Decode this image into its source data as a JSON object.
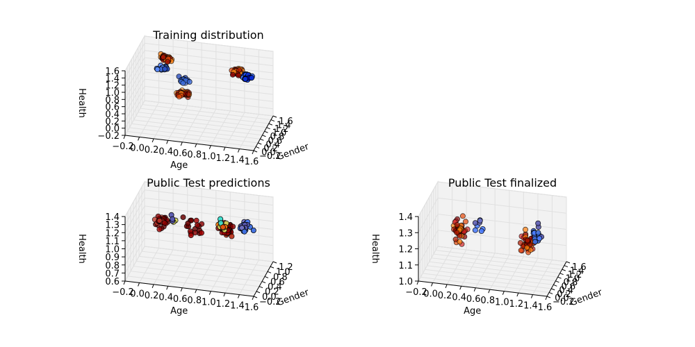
{
  "chart_data": [
    {
      "type": "scatter3d",
      "title": "Training distribution",
      "xlabel": "Age",
      "ylabel": "Gender",
      "zlabel": "Health",
      "xticks": [
        "−0.2",
        "0.0",
        "0.2",
        "0.4",
        "0.6",
        "0.8",
        "1.0",
        "1.2",
        "1.4",
        "1.6"
      ],
      "yticks": [
        "−0.2",
        "0.0",
        "0.2",
        "0.4",
        "0.6",
        "0.8",
        "1.0",
        "1.2",
        "1.4",
        "1.6"
      ],
      "zticks": [
        "−0.2",
        "0.0",
        "0.2",
        "0.4",
        "0.6",
        "0.8",
        "1.0",
        "1.2",
        "1.4",
        "1.6"
      ],
      "xlim": [
        -0.2,
        1.6
      ],
      "ylim": [
        -0.2,
        1.6
      ],
      "zlim": [
        -0.2,
        1.6
      ],
      "clusters": [
        {
          "x": 0.2,
          "y": 0.9,
          "z": 1.45,
          "n": 40,
          "spread": 0.08,
          "colors": [
            "#b21a00",
            "#e84a0a",
            "#ff7f0e",
            "#8b0000"
          ]
        },
        {
          "x": 0.3,
          "y": 0.1,
          "z": 1.65,
          "n": 18,
          "spread": 0.07,
          "colors": [
            "#3f6fe0",
            "#5a8cff",
            "#2a4fbf"
          ]
        },
        {
          "x": 0.5,
          "y": 0.6,
          "z": 1.05,
          "n": 18,
          "spread": 0.07,
          "colors": [
            "#3f6fe0",
            "#6f96ff",
            "#2a4fbf"
          ]
        },
        {
          "x": 0.4,
          "y": 1.2,
          "z": 0.35,
          "n": 38,
          "spread": 0.08,
          "colors": [
            "#b21a00",
            "#e84a0a",
            "#ff8c1a",
            "#8b0000"
          ]
        },
        {
          "x": 1.2,
          "y": 0.9,
          "z": 1.3,
          "n": 45,
          "spread": 0.08,
          "colors": [
            "#b21a00",
            "#e84a0a",
            "#ff8c1a",
            "#8b0000"
          ]
        },
        {
          "x": 1.45,
          "y": 0.2,
          "z": 1.6,
          "n": 45,
          "spread": 0.07,
          "colors": [
            "#0a2fd8",
            "#1e4dff",
            "#4a7cff",
            "#0000a8"
          ]
        }
      ]
    },
    {
      "type": "scatter3d",
      "title": "Public Test predictions",
      "xlabel": "Age",
      "ylabel": "Gender",
      "zlabel": "Health",
      "xticks": [
        "−0.2",
        "0.0",
        "0.2",
        "0.4",
        "0.6",
        "0.8",
        "1.0",
        "1.2",
        "1.4",
        "1.6"
      ],
      "yticks": [
        "−0.2",
        "0.0",
        "0.2",
        "0.4",
        "0.6",
        "0.8",
        "1.0",
        "1.2"
      ],
      "zticks": [
        "0.6",
        "0.7",
        "0.8",
        "0.9",
        "1.0",
        "1.1",
        "1.2",
        "1.3",
        "1.4"
      ],
      "xlim": [
        -0.2,
        1.6
      ],
      "ylim": [
        -0.2,
        1.2
      ],
      "zlim": [
        0.6,
        1.4
      ],
      "clusters": [
        {
          "x": 0.15,
          "y": 0.5,
          "z": 1.15,
          "n": 30,
          "spread": 0.1,
          "colors": [
            "#8b0000",
            "#a30000",
            "#6b0000",
            "#c0392b"
          ]
        },
        {
          "x": 0.65,
          "y": 0.3,
          "z": 1.2,
          "n": 18,
          "spread": 0.12,
          "colors": [
            "#8b0000",
            "#6b0000",
            "#a30000"
          ]
        },
        {
          "x": 0.45,
          "y": -0.1,
          "z": 1.42,
          "n": 6,
          "spread": 0.06,
          "colors": [
            "#5a5ab0",
            "#40e0d0",
            "#e0e060"
          ]
        },
        {
          "x": 1.1,
          "y": 0.4,
          "z": 1.2,
          "n": 55,
          "spread": 0.09,
          "colors": [
            "#8b0000",
            "#6b0000",
            "#a30000",
            "#b21a00"
          ]
        },
        {
          "x": 1.1,
          "y": 0.1,
          "z": 1.33,
          "n": 12,
          "spread": 0.08,
          "colors": [
            "#ff7f0e",
            "#e84a0a",
            "#40e0d0",
            "#e0e060"
          ]
        },
        {
          "x": 1.45,
          "y": -0.1,
          "z": 1.4,
          "n": 22,
          "spread": 0.08,
          "colors": [
            "#5a5ab0",
            "#7070c0",
            "#4a7cff",
            "#3f6fe0"
          ]
        }
      ]
    },
    {
      "type": "scatter3d",
      "title": "Public Test finalized",
      "xlabel": "Age",
      "ylabel": "Gender",
      "zlabel": "Health",
      "xticks": [
        "−0.2",
        "0.0",
        "0.2",
        "0.4",
        "0.6",
        "0.8",
        "1.0",
        "1.2",
        "1.4",
        "1.6"
      ],
      "yticks": [
        "−0.2",
        "0.0",
        "0.2",
        "0.4",
        "0.6",
        "0.8",
        "1.0",
        "1.2",
        "1.4",
        "1.6"
      ],
      "zticks": [
        "1.0",
        "1.1",
        "1.2",
        "1.3",
        "1.4"
      ],
      "xlim": [
        -0.2,
        1.6
      ],
      "ylim": [
        -0.2,
        1.6
      ],
      "zlim": [
        0.95,
        1.45
      ],
      "clusters": [
        {
          "x": 0.2,
          "y": 1.0,
          "z": 1.2,
          "n": 38,
          "spread": 0.09,
          "colors": [
            "#b21a00",
            "#e84a0a",
            "#ff7f0e",
            "#8b0000",
            "#d62728"
          ]
        },
        {
          "x": 0.55,
          "y": 0.3,
          "z": 1.35,
          "n": 8,
          "spread": 0.07,
          "colors": [
            "#5a5ab0",
            "#4a7cff",
            "#7070c0"
          ]
        },
        {
          "x": 1.15,
          "y": 1.0,
          "z": 1.15,
          "n": 48,
          "spread": 0.09,
          "colors": [
            "#b21a00",
            "#e84a0a",
            "#ff7f0e",
            "#8b0000",
            "#d62728"
          ]
        },
        {
          "x": 1.4,
          "y": 0.2,
          "z": 1.35,
          "n": 18,
          "spread": 0.08,
          "colors": [
            "#3f6fe0",
            "#4a7cff",
            "#5a5ab0"
          ]
        }
      ]
    }
  ]
}
